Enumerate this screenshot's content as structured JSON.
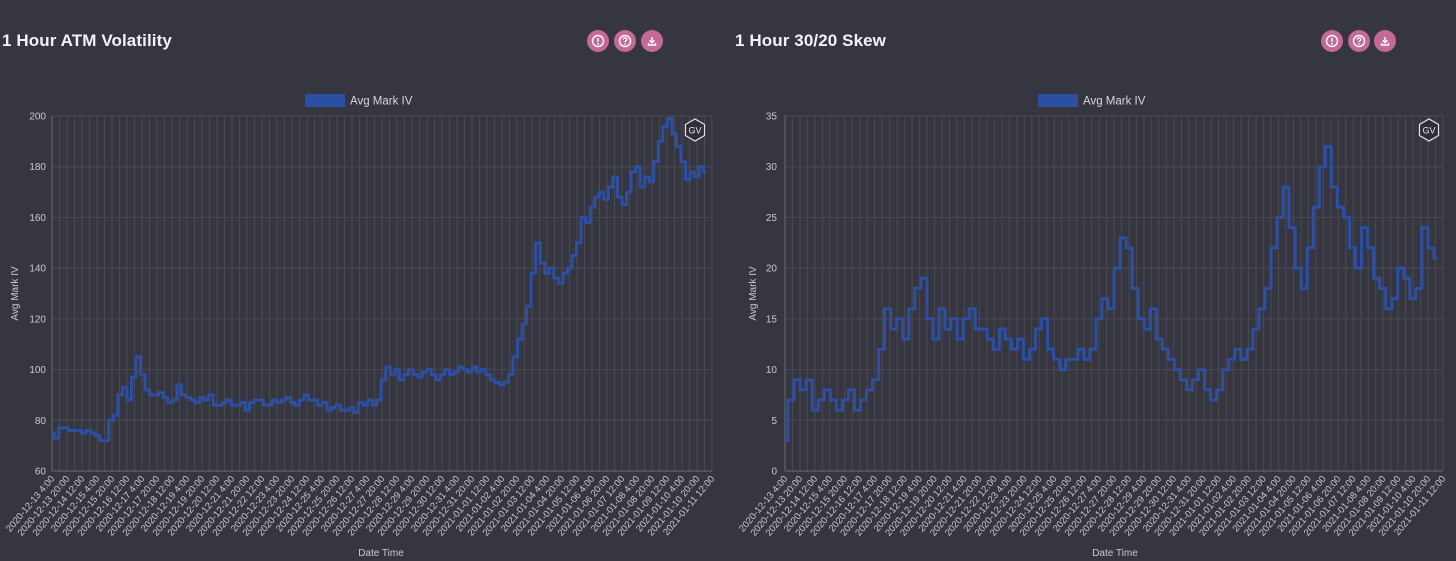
{
  "panels": [
    {
      "title": "1 Hour ATM Volatility",
      "icons": [
        "info-icon",
        "help-icon",
        "download-icon"
      ],
      "badge": "GV"
    },
    {
      "title": "1 Hour 30/20 Skew",
      "icons": [
        "info-icon",
        "help-icon",
        "download-icon"
      ],
      "badge": "GV"
    }
  ],
  "colors": {
    "series": "#2d4fa3",
    "grid": "#4a4a55",
    "axis_text": "#c9c9cf"
  },
  "chart_data": [
    {
      "type": "line",
      "title": "1 Hour ATM Volatility",
      "xlabel": "Date Time",
      "ylabel": "Avg Mark IV",
      "legend": "top-center",
      "grid": true,
      "series": [
        {
          "name": "Avg Mark IV",
          "values": [
            75,
            73,
            77,
            77,
            76,
            76,
            76,
            75,
            76,
            75,
            74,
            72,
            72,
            80,
            82,
            90,
            93,
            88,
            97,
            105,
            98,
            92,
            90,
            90,
            91,
            89,
            87,
            88,
            94,
            90,
            89,
            88,
            87,
            89,
            88,
            90,
            86,
            86,
            87,
            88,
            86,
            86,
            87,
            84,
            87,
            88,
            88,
            86,
            86,
            88,
            87,
            88,
            89,
            87,
            86,
            88,
            90,
            88,
            88,
            86,
            87,
            84,
            85,
            86,
            84,
            84,
            85,
            83,
            87,
            86,
            88,
            86,
            88,
            96,
            101,
            98,
            100,
            96,
            98,
            100,
            98,
            97,
            99,
            100,
            98,
            96,
            98,
            100,
            98,
            99,
            101,
            100,
            99,
            101,
            99,
            100,
            98,
            96,
            95,
            94,
            95,
            98,
            105,
            112,
            118,
            125,
            138,
            150,
            142,
            138,
            140,
            136,
            134,
            138,
            140,
            145,
            150,
            160,
            158,
            164,
            168,
            170,
            167,
            172,
            176,
            168,
            165,
            170,
            178,
            180,
            172,
            176,
            174,
            182,
            190,
            196,
            199,
            193,
            188,
            182,
            175,
            178,
            176,
            180,
            178
          ]
        }
      ],
      "x_labels": [
        "2020-12-13 4:00",
        "2020-12-13 20:00",
        "2020-12-14 12:00",
        "2020-12-15 4:00",
        "2020-12-15 20:00",
        "2020-12-16 12:00",
        "2020-12-17 4:00",
        "2020-12-17 20:00",
        "2020-12-18 12:00",
        "2020-12-19 4:00",
        "2020-12-19 20:00",
        "2020-12-20 12:00",
        "2020-12-21 4:00",
        "2020-12-21 20:00",
        "2020-12-22 12:00",
        "2020-12-23 4:00",
        "2020-12-23 20:00",
        "2020-12-24 12:00",
        "2020-12-25 4:00",
        "2020-12-25 20:00",
        "2020-12-26 12:00",
        "2020-12-27 4:00",
        "2020-12-27 20:00",
        "2020-12-28 12:00",
        "2020-12-29 4:00",
        "2020-12-29 20:00",
        "2020-12-30 12:00",
        "2020-12-31 4:00",
        "2020-12-31 20:00",
        "2021-01-01 12:00",
        "2021-01-02 4:00",
        "2021-01-02 20:00",
        "2021-01-03 12:00",
        "2021-01-04 4:00",
        "2021-01-04 20:00",
        "2021-01-05 12:00",
        "2021-01-06 4:00",
        "2021-01-06 20:00",
        "2021-01-07 12:00",
        "2021-01-08 4:00",
        "2021-01-08 20:00",
        "2021-01-09 12:00",
        "2021-01-10 4:00",
        "2021-01-10 20:00",
        "2021-01-11 12:00"
      ],
      "y_ticks": [
        60,
        80,
        100,
        120,
        140,
        160,
        180,
        200
      ],
      "ylim": [
        60,
        200
      ]
    },
    {
      "type": "line",
      "title": "1 Hour 30/20 Skew",
      "xlabel": "Date Time",
      "ylabel": "Avg Mark IV",
      "legend": "top-center",
      "grid": true,
      "series": [
        {
          "name": "Avg Mark IV",
          "values": [
            3,
            7,
            9,
            8,
            9,
            6,
            7,
            8,
            7,
            6,
            7,
            8,
            6,
            7,
            8,
            9,
            12,
            16,
            14,
            15,
            13,
            16,
            18,
            19,
            15,
            13,
            16,
            14,
            15,
            13,
            15,
            16,
            14,
            14,
            13,
            12,
            14,
            13,
            12,
            13,
            11,
            12,
            14,
            15,
            12,
            11,
            10,
            11,
            11,
            12,
            11,
            12,
            15,
            17,
            16,
            20,
            23,
            22,
            18,
            15,
            14,
            16,
            13,
            12,
            11,
            10,
            9,
            8,
            9,
            10,
            8,
            7,
            8,
            10,
            11,
            12,
            11,
            12,
            14,
            16,
            18,
            22,
            25,
            28,
            24,
            20,
            18,
            22,
            26,
            30,
            32,
            28,
            26,
            25,
            22,
            20,
            24,
            22,
            19,
            18,
            16,
            17,
            20,
            19,
            17,
            18,
            24,
            22,
            21
          ]
        }
      ],
      "x_labels": [
        "2020-12-13 4:00",
        "2020-12-13 20:00",
        "2020-12-14 12:00",
        "2020-12-15 4:00",
        "2020-12-15 20:00",
        "2020-12-16 12:00",
        "2020-12-17 4:00",
        "2020-12-17 20:00",
        "2020-12-18 12:00",
        "2020-12-19 4:00",
        "2020-12-19 20:00",
        "2020-12-20 12:00",
        "2020-12-21 4:00",
        "2020-12-21 20:00",
        "2020-12-22 12:00",
        "2020-12-23 4:00",
        "2020-12-23 20:00",
        "2020-12-24 12:00",
        "2020-12-25 4:00",
        "2020-12-25 20:00",
        "2020-12-26 12:00",
        "2020-12-27 4:00",
        "2020-12-27 20:00",
        "2020-12-28 12:00",
        "2020-12-29 4:00",
        "2020-12-29 20:00",
        "2020-12-30 12:00",
        "2020-12-31 4:00",
        "2020-12-31 20:00",
        "2021-01-01 12:00",
        "2021-01-02 4:00",
        "2021-01-02 20:00",
        "2021-01-03 12:00",
        "2021-01-04 4:00",
        "2021-01-04 20:00",
        "2021-01-05 12:00",
        "2021-01-06 4:00",
        "2021-01-06 20:00",
        "2021-01-07 12:00",
        "2021-01-08 4:00",
        "2021-01-08 20:00",
        "2021-01-09 12:00",
        "2021-01-10 4:00",
        "2021-01-10 20:00",
        "2021-01-11 12:00"
      ],
      "y_ticks": [
        0,
        5,
        10,
        15,
        20,
        25,
        30,
        35
      ],
      "ylim": [
        0,
        35
      ]
    }
  ]
}
